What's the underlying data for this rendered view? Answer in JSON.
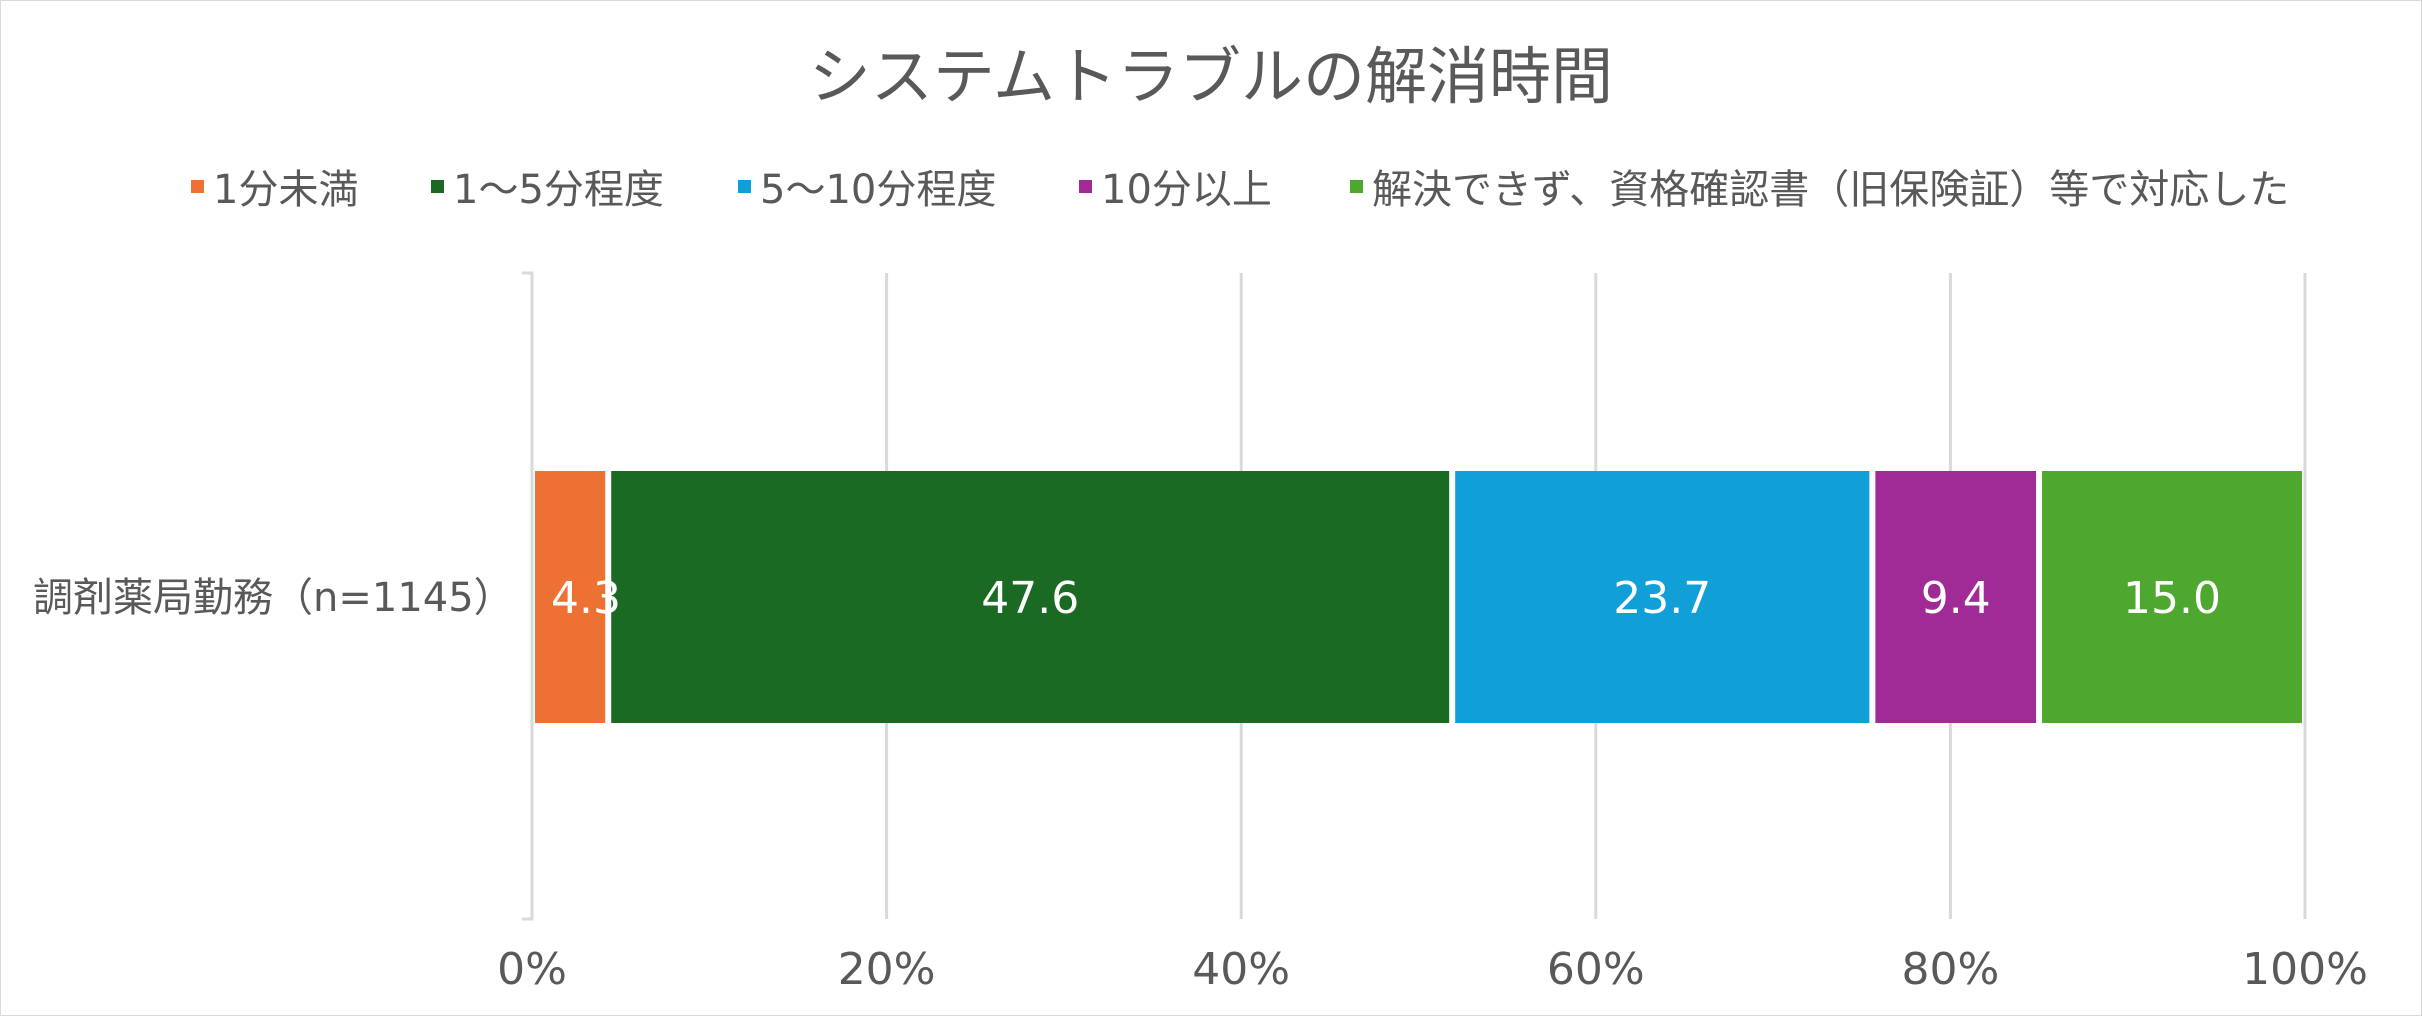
{
  "chart_data": {
    "type": "bar",
    "orientation": "horizontal",
    "stacked": true,
    "percent_stacked": true,
    "title": "システムトラブルの解消時間",
    "categories": [
      "調剤薬局勤務（n=1145）"
    ],
    "series": [
      {
        "name": "1分未満",
        "values": [
          4.3
        ],
        "color": "#ED7133"
      },
      {
        "name": "1～5分程度",
        "values": [
          47.6
        ],
        "color": "#1B6A24"
      },
      {
        "name": "5～10分程度",
        "values": [
          23.7
        ],
        "color": "#119FD8"
      },
      {
        "name": "10分以上",
        "values": [
          9.4
        ],
        "color": "#A02A96"
      },
      {
        "name": "解決できず、資格確認書（旧保険証）等で対応した",
        "values": [
          15.0
        ],
        "color": "#4EA72E"
      }
    ],
    "data_labels": [
      "4.3",
      "47.6",
      "23.7",
      "9.4",
      "15.0"
    ],
    "xlim": [
      0,
      100
    ],
    "x_ticks": [
      "0%",
      "20%",
      "40%",
      "60%",
      "80%",
      "100%"
    ],
    "grid": true,
    "legend": "top"
  }
}
